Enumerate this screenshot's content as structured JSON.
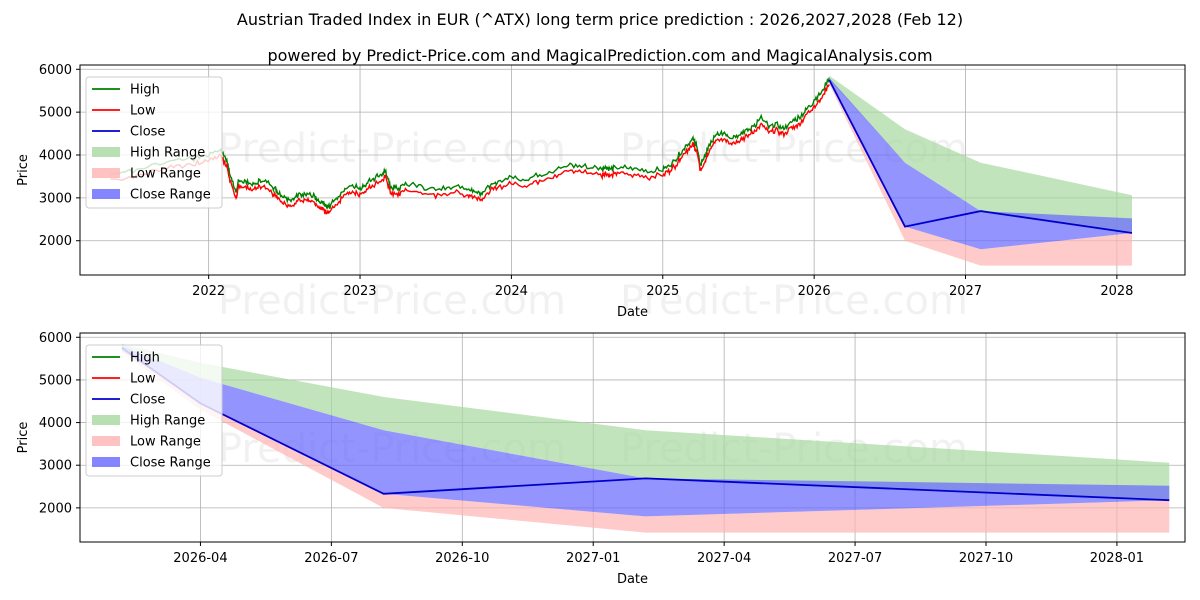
{
  "title": "Austrian Traded Index in EUR (^ATX) long term price prediction : 2026,2027,2028 (Feb 12)",
  "subtitle": "powered by Predict-Price.com and MagicalPrediction.com and MagicalAnalysis.com",
  "watermark": "Predict-Price.com",
  "colors": {
    "high": "#008000",
    "low": "#ff0000",
    "close": "#0000cc",
    "high_range": "#a8d8a0",
    "low_range": "#ffb3b3",
    "close_range": "#6666ff",
    "grid": "#b0b0b0"
  },
  "legend": [
    {
      "key": "high",
      "label": "High",
      "kind": "line"
    },
    {
      "key": "low",
      "label": "Low",
      "kind": "line"
    },
    {
      "key": "close",
      "label": "Close",
      "kind": "line"
    },
    {
      "key": "high_range",
      "label": "High Range",
      "kind": "patch"
    },
    {
      "key": "low_range",
      "label": "Low Range",
      "kind": "patch"
    },
    {
      "key": "close_range",
      "label": "Close Range",
      "kind": "patch"
    }
  ],
  "chart_data": [
    {
      "type": "line",
      "panel": "top",
      "xlabel": "Date",
      "ylabel": "Price",
      "xlim": [
        2021.15,
        2028.45
      ],
      "ylim": [
        1200,
        6100
      ],
      "yticks": [
        2000,
        3000,
        4000,
        5000,
        6000
      ],
      "xticks": [
        {
          "value": 2022.0,
          "label": "2022"
        },
        {
          "value": 2023.0,
          "label": "2023"
        },
        {
          "value": 2024.0,
          "label": "2024"
        },
        {
          "value": 2025.0,
          "label": "2025"
        },
        {
          "value": 2026.0,
          "label": "2026"
        },
        {
          "value": 2027.0,
          "label": "2027"
        },
        {
          "value": 2028.0,
          "label": "2028"
        }
      ],
      "grid": true,
      "legend_position": "top-left",
      "history": {
        "x": [
          2021.35,
          2021.55,
          2021.75,
          2021.9,
          2022.0,
          2022.08,
          2022.12,
          2022.14,
          2022.18,
          2022.19,
          2022.2,
          2022.25,
          2022.3,
          2022.35,
          2022.42,
          2022.45,
          2022.5,
          2022.55,
          2022.6,
          2022.65,
          2022.7,
          2022.72,
          2022.75,
          2022.78,
          2022.8,
          2022.85,
          2022.9,
          2022.95,
          2023.0,
          2023.05,
          2023.1,
          2023.15,
          2023.17,
          2023.2,
          2023.25,
          2023.3,
          2023.4,
          2023.5,
          2023.6,
          2023.7,
          2023.75,
          2023.8,
          2023.85,
          2023.9,
          2024.0,
          2024.1,
          2024.2,
          2024.3,
          2024.4,
          2024.5,
          2024.6,
          2024.62,
          2024.65,
          2024.7,
          2024.8,
          2024.9,
          2025.0,
          2025.05,
          2025.1,
          2025.15,
          2025.2,
          2025.22,
          2025.25,
          2025.28,
          2025.3,
          2025.35,
          2025.4,
          2025.45,
          2025.5,
          2025.55,
          2025.6,
          2025.65,
          2025.7,
          2025.75,
          2025.8,
          2025.85,
          2025.9,
          2025.95,
          2026.0,
          2026.05,
          2026.1
        ],
        "close": [
          3500,
          3600,
          3800,
          3850,
          3950,
          4050,
          3800,
          3500,
          3050,
          3200,
          3350,
          3300,
          3250,
          3350,
          3200,
          3100,
          2950,
          2900,
          3000,
          3050,
          2950,
          2850,
          2800,
          2700,
          2750,
          2950,
          3150,
          3200,
          3150,
          3300,
          3400,
          3500,
          3550,
          3200,
          3150,
          3250,
          3200,
          3100,
          3200,
          3150,
          3100,
          3050,
          3200,
          3300,
          3400,
          3350,
          3500,
          3600,
          3700,
          3650,
          3600,
          3650,
          3600,
          3650,
          3600,
          3550,
          3600,
          3700,
          3900,
          4150,
          4300,
          4200,
          3700,
          3900,
          4100,
          4400,
          4450,
          4350,
          4400,
          4500,
          4600,
          4800,
          4600,
          4650,
          4550,
          4700,
          4800,
          5000,
          5200,
          5400,
          5750
        ],
        "band": 70
      },
      "forecast": {
        "x": [
          2026.1,
          2026.6,
          2027.1,
          2028.1
        ],
        "close": [
          5750,
          2330,
          2690,
          2180
        ],
        "high_range": {
          "upper": [
            5850,
            4600,
            3820,
            3060
          ],
          "lower": [
            5750,
            3820,
            2690,
            2180
          ]
        },
        "close_range": {
          "upper": [
            5800,
            3820,
            2690,
            2520
          ],
          "lower": [
            5700,
            2330,
            1800,
            2180
          ]
        },
        "low_range": {
          "upper": [
            5700,
            2330,
            1800,
            2180
          ],
          "lower": [
            5650,
            2000,
            1420,
            1420
          ]
        }
      }
    },
    {
      "type": "line",
      "panel": "bottom",
      "xlabel": "Date",
      "ylabel": "Price",
      "xlim": [
        2026.02,
        2028.13
      ],
      "ylim": [
        1200,
        6100
      ],
      "yticks": [
        2000,
        3000,
        4000,
        5000,
        6000
      ],
      "xticks": [
        {
          "value": 2026.25,
          "label": "2026-04"
        },
        {
          "value": 2026.5,
          "label": "2026-07"
        },
        {
          "value": 2026.75,
          "label": "2026-10"
        },
        {
          "value": 2027.0,
          "label": "2027-01"
        },
        {
          "value": 2027.25,
          "label": "2027-04"
        },
        {
          "value": 2027.5,
          "label": "2027-07"
        },
        {
          "value": 2027.75,
          "label": "2027-10"
        },
        {
          "value": 2028.0,
          "label": "2028-01"
        }
      ],
      "grid": true,
      "legend_position": "top-left",
      "forecast": {
        "x": [
          2026.1,
          2026.25,
          2026.6,
          2027.1,
          2028.1
        ],
        "close": [
          5750,
          4450,
          2330,
          2690,
          2180
        ],
        "high_range": {
          "upper": [
            5850,
            5400,
            4600,
            3820,
            3060
          ],
          "lower": [
            5750,
            5050,
            3820,
            2690,
            2180
          ]
        },
        "close_range": {
          "upper": [
            5800,
            5050,
            3820,
            2690,
            2520
          ],
          "lower": [
            5700,
            4450,
            2330,
            1800,
            2180
          ]
        },
        "low_range": {
          "upper": [
            5700,
            4450,
            2330,
            1800,
            2180
          ],
          "lower": [
            5650,
            4300,
            2000,
            1420,
            1420
          ]
        }
      }
    }
  ]
}
